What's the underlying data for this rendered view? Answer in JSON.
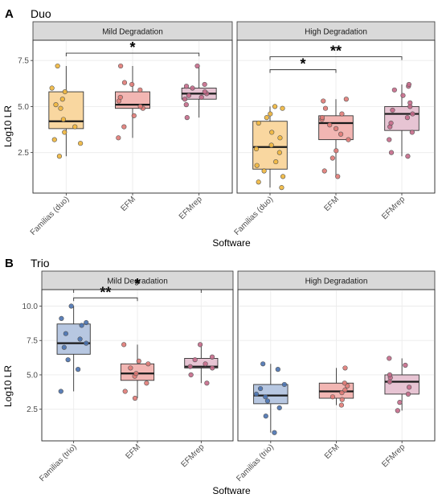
{
  "chart_data": [
    {
      "type": "box",
      "panel_letter": "A",
      "title": "Duo",
      "xlabel": "Software",
      "ylabel": "Log10 LR",
      "ylim": [
        0.3,
        8.6
      ],
      "y_ticks": [
        "2.5",
        "5.0",
        "7.5"
      ],
      "categories": [
        "Familias (duo)",
        "EFM",
        "EFMrep"
      ],
      "colors": {
        "Familias (duo)": "#f9d7a0",
        "EFM": "#f2b6b3",
        "EFMrep": "#e7c4d3"
      },
      "point_colors": {
        "Familias (duo)": "#f0b63c",
        "EFM": "#e07a75",
        "EFMrep": "#c56a8a"
      },
      "facets": [
        {
          "label": "Mild Degradation",
          "boxes": [
            {
              "category": "Familias (duo)",
              "min": 2.3,
              "q1": 3.8,
              "median": 4.2,
              "q3": 5.8,
              "max": 7.2,
              "points": [
                2.3,
                3.0,
                3.2,
                3.6,
                3.9,
                4.3,
                4.9,
                5.1,
                5.4,
                5.8,
                6.0,
                7.2
              ]
            },
            {
              "category": "EFM",
              "min": 3.3,
              "q1": 4.9,
              "median": 5.1,
              "q3": 5.8,
              "max": 7.2,
              "points": [
                3.3,
                3.9,
                4.5,
                4.9,
                5.0,
                5.3,
                5.5,
                5.9,
                6.2,
                6.3,
                7.2
              ]
            },
            {
              "category": "EFMrep",
              "min": 4.4,
              "q1": 5.4,
              "median": 5.7,
              "q3": 6.0,
              "max": 7.2,
              "points": [
                4.4,
                5.1,
                5.4,
                5.5,
                5.6,
                5.7,
                5.8,
                6.0,
                6.1,
                6.2,
                7.2
              ]
            }
          ],
          "significance": [
            {
              "from": "Familias (duo)",
              "to": "EFMrep",
              "y": 7.9,
              "label": "*"
            }
          ]
        },
        {
          "label": "High Degradation",
          "boxes": [
            {
              "category": "Familias (duo)",
              "min": 0.6,
              "q1": 1.6,
              "median": 2.8,
              "q3": 4.2,
              "max": 5.0,
              "points": [
                0.6,
                0.9,
                1.2,
                1.5,
                1.8,
                2.0,
                2.5,
                2.7,
                2.9,
                3.3,
                3.6,
                4.1,
                4.4,
                4.6,
                4.9,
                5.0
              ]
            },
            {
              "category": "EFM",
              "min": 1.2,
              "q1": 3.2,
              "median": 4.1,
              "q3": 4.5,
              "max": 5.4,
              "points": [
                1.2,
                1.5,
                2.2,
                2.6,
                3.2,
                3.5,
                3.8,
                4.0,
                4.3,
                4.4,
                4.6,
                4.9,
                5.3,
                5.4
              ]
            },
            {
              "category": "EFMrep",
              "min": 2.3,
              "q1": 3.7,
              "median": 4.6,
              "q3": 5.0,
              "max": 6.2,
              "points": [
                2.3,
                2.5,
                3.2,
                3.6,
                3.9,
                4.1,
                4.4,
                4.6,
                4.8,
                5.0,
                5.2,
                5.6,
                5.9,
                6.1,
                6.2
              ]
            }
          ],
          "significance": [
            {
              "from": "Familias (duo)",
              "to": "EFM",
              "y": 7.0,
              "label": "*"
            },
            {
              "from": "Familias (duo)",
              "to": "EFMrep",
              "y": 7.7,
              "label": "**"
            }
          ]
        }
      ]
    },
    {
      "type": "box",
      "panel_letter": "B",
      "title": "Trio",
      "xlabel": "Software",
      "ylabel": "Log10 LR",
      "ylim": [
        0.2,
        11.2
      ],
      "y_ticks": [
        "2.5",
        "5.0",
        "7.5",
        "10.0"
      ],
      "categories": [
        "Familias (trio)",
        "EFM",
        "EFMrep"
      ],
      "colors": {
        "Familias (trio)": "#b7c7e1",
        "EFM": "#f2b6b3",
        "EFMrep": "#e7c4d3"
      },
      "point_colors": {
        "Familias (trio)": "#4a72b0",
        "EFM": "#e07a75",
        "EFMrep": "#c56a8a"
      },
      "facets": [
        {
          "label": "Mild Degradation",
          "boxes": [
            {
              "category": "Familias (trio)",
              "min": 3.8,
              "q1": 6.5,
              "median": 7.3,
              "q3": 8.7,
              "max": 10.0,
              "points": [
                3.8,
                5.4,
                6.1,
                7.0,
                7.3,
                7.6,
                8.0,
                8.6,
                8.8,
                9.1,
                10.0
              ]
            },
            {
              "category": "EFM",
              "min": 3.3,
              "q1": 4.6,
              "median": 5.1,
              "q3": 5.8,
              "max": 7.2,
              "points": [
                3.3,
                3.8,
                4.4,
                4.9,
                5.1,
                5.5,
                5.8,
                6.0,
                7.2
              ]
            },
            {
              "category": "EFMrep",
              "min": 4.4,
              "q1": 5.5,
              "median": 5.6,
              "q3": 6.2,
              "max": 7.2,
              "points": [
                4.4,
                5.0,
                5.5,
                5.6,
                5.8,
                6.1,
                6.3,
                7.2
              ]
            }
          ],
          "significance": [
            {
              "from": "Familias (trio)",
              "to": "EFM",
              "y": 10.6,
              "label": "**"
            },
            {
              "from": "Familias (trio)",
              "to": "EFMrep",
              "y": 11.2,
              "label": "*"
            }
          ]
        },
        {
          "label": "High Degradation",
          "boxes": [
            {
              "category": "Familias (trio)",
              "min": 0.8,
              "q1": 2.9,
              "median": 3.5,
              "q3": 4.3,
              "max": 5.8,
              "points": [
                0.8,
                2.0,
                2.6,
                3.1,
                3.4,
                3.6,
                4.0,
                4.3,
                5.4,
                5.8
              ]
            },
            {
              "category": "EFM",
              "min": 2.8,
              "q1": 3.3,
              "median": 3.8,
              "q3": 4.4,
              "max": 5.5,
              "points": [
                2.8,
                3.2,
                3.4,
                3.7,
                3.9,
                4.2,
                4.4,
                5.5
              ]
            },
            {
              "category": "EFMrep",
              "min": 2.4,
              "q1": 3.6,
              "median": 4.5,
              "q3": 5.0,
              "max": 6.2,
              "points": [
                2.4,
                3.0,
                3.6,
                4.1,
                4.5,
                4.8,
                5.0,
                5.7,
                6.2
              ]
            }
          ],
          "significance": []
        }
      ]
    }
  ]
}
